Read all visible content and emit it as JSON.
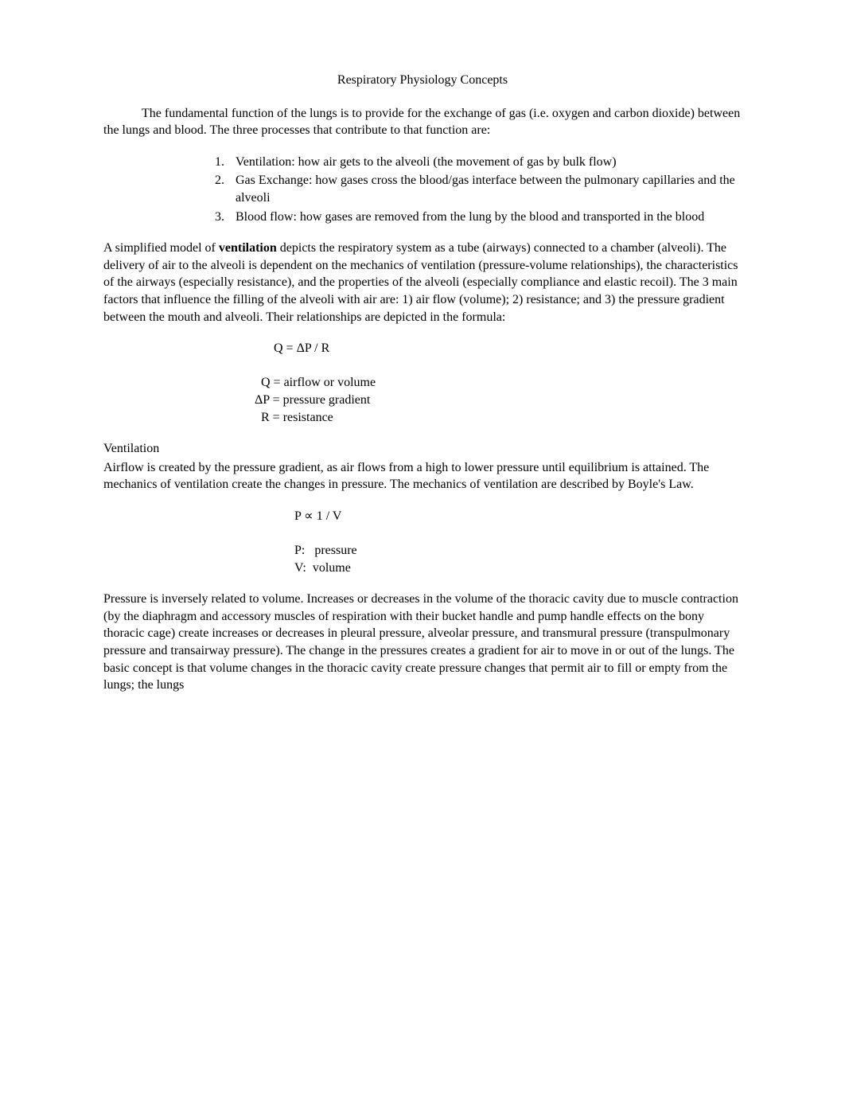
{
  "title": "Respiratory Physiology Concepts",
  "intro": "The fundamental function of the lungs is to provide for the exchange of gas (i.e. oxygen and carbon dioxide) between the lungs and blood. The three processes that contribute to that function are:",
  "list": [
    {
      "num": "1.",
      "text": "Ventilation:  how air gets to the alveoli (the movement of gas by bulk flow)"
    },
    {
      "num": "2.",
      "text": "Gas Exchange:  how gases cross the blood/gas interface between the pulmonary capillaries and the alveoli"
    },
    {
      "num": "3.",
      "text": "Blood flow:  how gases are removed from the lung by the blood and transported in the blood"
    }
  ],
  "para2_pre": "A simplified model of ",
  "para2_bold": "ventilation",
  "para2_post": " depicts the respiratory system as a tube (airways) connected to a chamber (alveoli).  The delivery of air to the alveoli is dependent on the mechanics of ventilation (pressure-volume relationships), the characteristics of the airways (especially resistance), and the properties of the alveoli (especially compliance and elastic recoil).  The 3 main factors that influence the filling of the alveoli with air are: 1) air flow (volume); 2) resistance; and 3) the pressure gradient between the mouth and alveoli.  Their relationships are depicted in the formula:",
  "formula1": {
    "eq": "      Q = ΔP / R",
    "l1": "  Q = airflow or volume",
    "l2": "ΔP = pressure gradient",
    "l3": "  R = resistance"
  },
  "sect_head": "Ventilation",
  "para3": "Airflow is created by the pressure gradient, as air flows from a high to lower pressure until equilibrium is attained.  The mechanics of ventilation create the changes in pressure.  The mechanics of ventilation are described by Boyle's Law.",
  "formula2": {
    "eq": "P ∝ 1 / V",
    "l1": "P:   pressure",
    "l2": "V:  volume"
  },
  "para4": "Pressure is inversely related to volume.  Increases or decreases in the volume of the thoracic cavity due to muscle contraction (by the diaphragm and accessory muscles of respiration with their bucket handle and pump handle effects on the bony thoracic cage) create increases or decreases in pleural pressure, alveolar pressure, and transmural pressure (transpulmonary pressure and transairway pressure).  The change in the pressures creates a gradient for air to move in or out of the lungs.  The basic concept is that volume changes in the thoracic cavity create pressure changes that permit air to fill or empty from the lungs; the lungs"
}
